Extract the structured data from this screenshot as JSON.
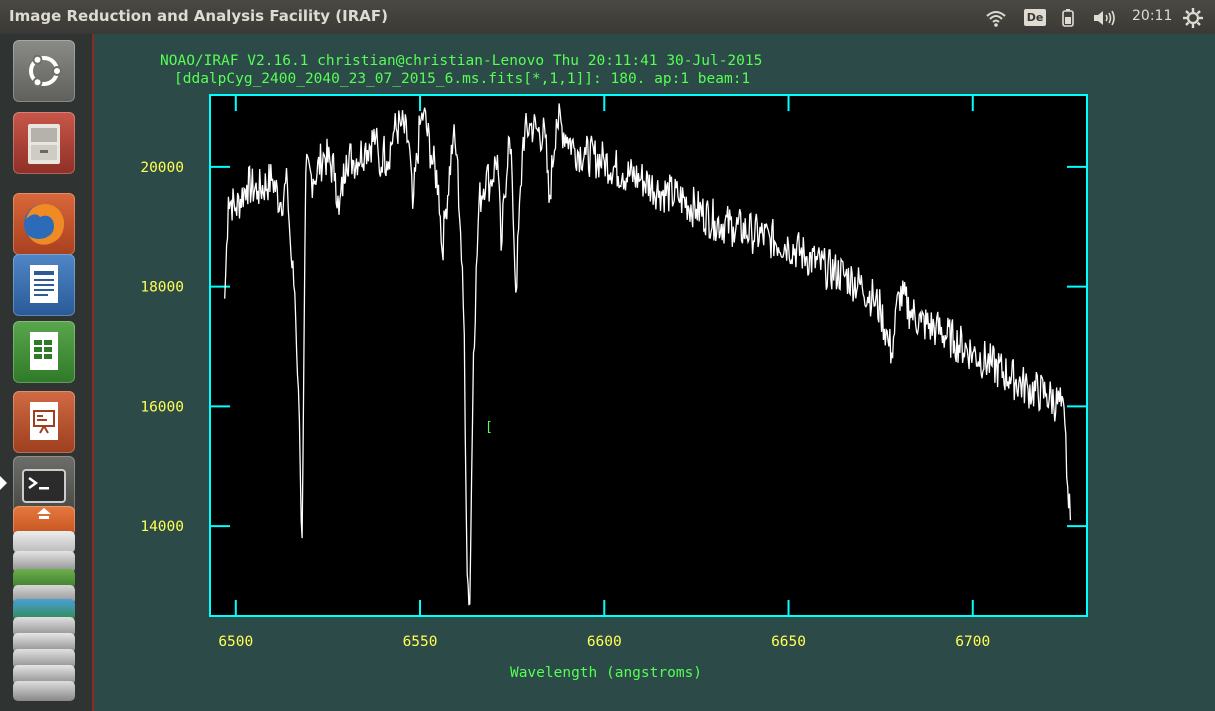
{
  "window": {
    "title": "Image Reduction and Analysis Facility (IRAF)"
  },
  "panel": {
    "keyboard_layout": "De",
    "clock": "20:11"
  },
  "icons": {
    "wifi": "wifi-icon",
    "battery": "battery-icon",
    "volume": "volume-icon",
    "settings": "gear-icon"
  },
  "launcher": {
    "items": [
      {
        "name": "ubuntu-dash-button",
        "icon": "ubuntu-logo-icon"
      },
      {
        "name": "files-button",
        "icon": "file-cabinet-icon"
      },
      {
        "name": "firefox-button",
        "icon": "firefox-icon"
      },
      {
        "name": "writer-button",
        "icon": "document-icon"
      },
      {
        "name": "calc-button",
        "icon": "spreadsheet-icon"
      },
      {
        "name": "impress-button",
        "icon": "presentation-icon"
      },
      {
        "name": "terminal-button",
        "icon": "terminal-icon"
      },
      {
        "name": "software-center-button",
        "icon": "shopping-bag-icon"
      }
    ]
  },
  "plot": {
    "header_line1": "NOAO/IRAF V2.16.1 christian@christian-Lenovo Thu 20:11:41 30-Jul-2015",
    "header_line2": "[ddalpCyg_2400_2040_23_07_2015_6.ms.fits[*,1,1]]:  180. ap:1 beam:1",
    "cursor_marker": "["
  },
  "colors": {
    "desktop": "#2c4a47",
    "axes": "#00ffff",
    "header_text": "#55ff55",
    "tick_labels": "#ffff55",
    "xlabel": "#55ff55",
    "spectrum": "#ffffff"
  },
  "chart_data": {
    "type": "line",
    "xlabel": "Wavelength (angstroms)",
    "ylabel": "",
    "xlim": [
      6493,
      6731
    ],
    "ylim": [
      12500,
      21200
    ],
    "x_ticks": [
      6500,
      6550,
      6600,
      6650,
      6700
    ],
    "y_ticks": [
      14000,
      16000,
      18000,
      20000
    ],
    "grid": false,
    "series": [
      {
        "x": [
          6497,
          6498,
          6500,
          6503,
          6506,
          6510,
          6512,
          6514,
          6515,
          6516,
          6517,
          6517.5,
          6518,
          6519,
          6521,
          6524,
          6527,
          6528,
          6530,
          6532,
          6535,
          6538,
          6539,
          6540,
          6541,
          6543,
          6545,
          6547,
          6548,
          6550,
          6551,
          6553,
          6555,
          6556,
          6557,
          6559,
          6560,
          6561,
          6562,
          6562.8,
          6563.5,
          6564.5,
          6566,
          6568,
          6569,
          6571,
          6572,
          6574,
          6575,
          6576,
          6578,
          6580,
          6582,
          6584,
          6585,
          6587,
          6590,
          6592,
          6595,
          6600,
          6605,
          6610,
          6615,
          6620,
          6625,
          6630,
          6635,
          6640,
          6645,
          6650,
          6655,
          6660,
          6665,
          6670,
          6673,
          6675,
          6677,
          6678,
          6680,
          6683,
          6686,
          6690,
          6695,
          6700,
          6705,
          6710,
          6715,
          6720,
          6724,
          6725,
          6726,
          6726.5
        ],
        "y": [
          17800,
          19500,
          19300,
          19700,
          19600,
          19800,
          19400,
          19700,
          18500,
          17900,
          16300,
          14900,
          13800,
          19900,
          19800,
          20200,
          19900,
          19200,
          20200,
          20100,
          20300,
          20500,
          19900,
          20300,
          20100,
          20600,
          20700,
          20400,
          19300,
          20700,
          20900,
          20200,
          19700,
          18600,
          19300,
          20500,
          20200,
          18900,
          17200,
          13200,
          12700,
          16900,
          19400,
          19900,
          19700,
          20200,
          18600,
          20500,
          19800,
          17900,
          20500,
          20700,
          20600,
          20500,
          19400,
          20800,
          20500,
          20300,
          20200,
          20100,
          19900,
          19800,
          19600,
          19500,
          19300,
          19100,
          19000,
          18900,
          18800,
          18700,
          18500,
          18300,
          18200,
          18000,
          17800,
          17600,
          17100,
          16900,
          17900,
          17600,
          17400,
          17300,
          17100,
          16900,
          16700,
          16500,
          16300,
          16200,
          16000,
          15700,
          14300,
          14100
        ]
      }
    ]
  }
}
